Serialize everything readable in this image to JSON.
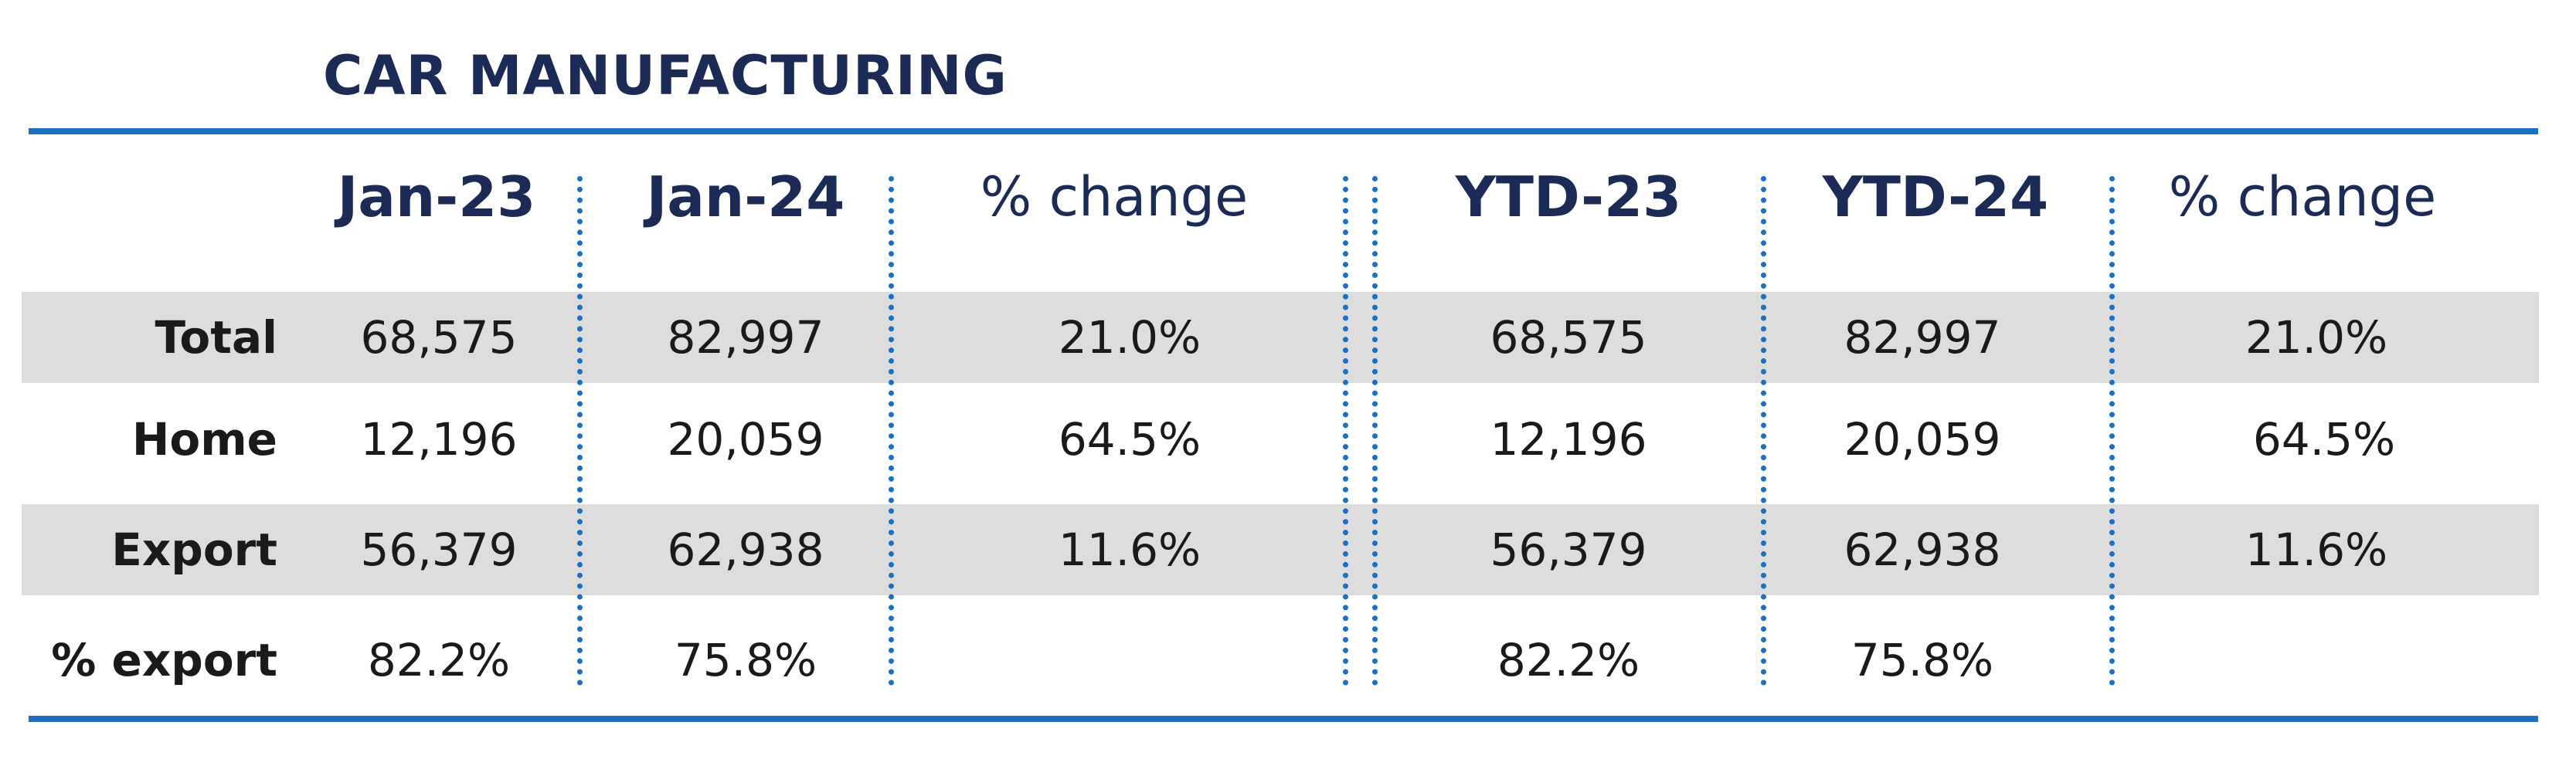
{
  "title": "CAR MANUFACTURING",
  "columns": [
    "Jan-23",
    "Jan-24",
    "% change",
    "YTD-23",
    "YTD-24",
    "% change"
  ],
  "rows": [
    {
      "label": "Total",
      "values": [
        "68,575",
        "82,997",
        "21.0%",
        "68,575",
        "82,997",
        "21.0%"
      ]
    },
    {
      "label": "Home",
      "values": [
        "12,196",
        "20,059",
        "64.5%",
        "12,196",
        "20,059",
        "64.5%"
      ]
    },
    {
      "label": "Export",
      "values": [
        "56,379",
        "62,938",
        "11.6%",
        "56,379",
        "62,938",
        "11.6%"
      ]
    },
    {
      "label": "% export",
      "values": [
        "82.2%",
        "75.8%",
        "",
        "82.2%",
        "75.8%",
        ""
      ]
    }
  ],
  "colors": {
    "title": "#1c2b55",
    "rule": "#1d6fbf",
    "band": "#dddddd"
  }
}
